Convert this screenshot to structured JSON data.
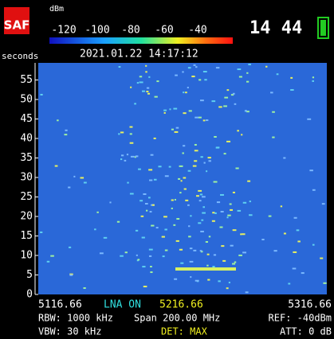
{
  "header": {
    "logo": "SAF",
    "unit": "dBm",
    "scale_labels": [
      "-120",
      "-100",
      "-80",
      "-60",
      "-40"
    ],
    "clock": "14 44"
  },
  "status": {
    "time_unit": "seconds",
    "timestamp": "2021.01.22 14:17:12"
  },
  "waterfall": {
    "yticks": [
      0,
      5,
      10,
      15,
      20,
      25,
      30,
      35,
      40,
      45,
      50,
      55
    ]
  },
  "footer": {
    "start_freq": "5116.66",
    "lna": "LNA ON",
    "center_freq": "5216.66",
    "stop_freq": "5316.66",
    "rbw": "RBW: 1000 kHz",
    "span": "Span 200.00 MHz",
    "ref": "REF: -40dBm",
    "vbw": "VBW: 30 kHz",
    "det": "DET: MAX",
    "att": "ATT:  0  dB"
  }
}
